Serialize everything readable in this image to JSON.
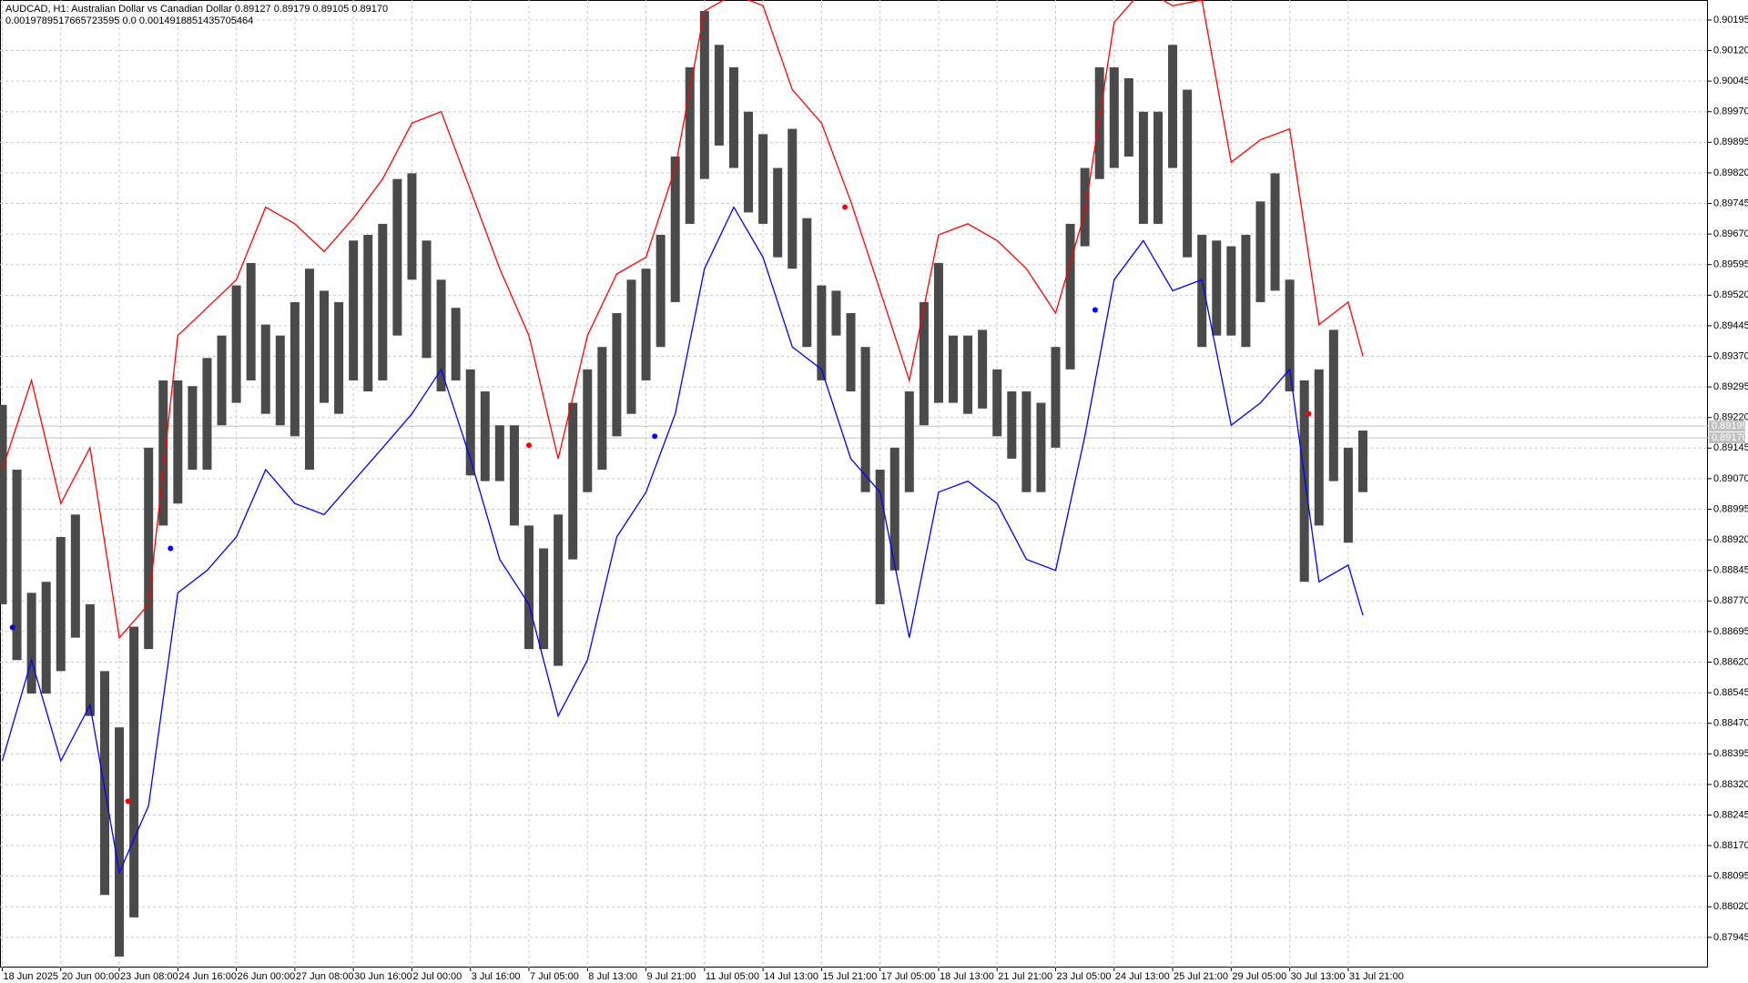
{
  "chart_data": {
    "type": "ohlc",
    "title": "AUDCAD, H1:  Australian Dollar vs Canadian Dollar  0.89127 0.89179 0.89105 0.89170",
    "subtitle": "0.0019789517665723595 0.0 0.0014918851435705464",
    "xlim": [
      0,
      116.5
    ],
    "xticks": [
      {
        "value": 0,
        "label": "18 Jun 2025"
      },
      {
        "value": 4,
        "label": "20 Jun 00:00"
      },
      {
        "value": 8,
        "label": "23 Jun 08:00"
      },
      {
        "value": 12,
        "label": "24 Jun 16:00"
      },
      {
        "value": 16,
        "label": "26 Jun 00:00"
      },
      {
        "value": 20,
        "label": "27 Jun 08:00"
      },
      {
        "value": 24,
        "label": "30 Jun 16:00"
      },
      {
        "value": 28,
        "label": "2 Jul 00:00"
      },
      {
        "value": 32,
        "label": "3 Jul 16:00"
      },
      {
        "value": 36,
        "label": "7 Jul 05:00"
      },
      {
        "value": 40,
        "label": "8 Jul 13:00"
      },
      {
        "value": 44,
        "label": "9 Jul 21:00"
      },
      {
        "value": 48,
        "label": "11 Jul 05:00"
      },
      {
        "value": 52,
        "label": "14 Jul 13:00"
      },
      {
        "value": 56,
        "label": "15 Jul 21:00"
      },
      {
        "value": 60,
        "label": "17 Jul 05:00"
      },
      {
        "value": 64,
        "label": "18 Jul 13:00"
      },
      {
        "value": 68,
        "label": "21 Jul 21:00"
      },
      {
        "value": 72,
        "label": "23 Jul 05:00"
      },
      {
        "value": 76,
        "label": "24 Jul 13:00"
      },
      {
        "value": 80,
        "label": "25 Jul 21:00"
      },
      {
        "value": 84,
        "label": "29 Jul 05:00"
      },
      {
        "value": 88,
        "label": "30 Jul 13:00"
      },
      {
        "value": 92,
        "label": "31 Jul 21:00"
      }
    ],
    "ylim": [
      0.87871,
      0.90244
    ],
    "yticks": [
      0.87945,
      {
        "value": 0.8802,
        "label": "0.88020"
      },
      0.88095,
      {
        "value": 0.8817,
        "label": "0.88170"
      },
      0.88245,
      {
        "value": 0.8832,
        "label": "0.88320"
      },
      0.88395,
      {
        "value": 0.8847,
        "label": "0.88470"
      },
      0.88545,
      {
        "value": 0.8862,
        "label": "0.88620"
      },
      0.88695,
      {
        "value": 0.8877,
        "label": "0.88770"
      },
      0.88845,
      {
        "value": 0.8892,
        "label": "0.88920"
      },
      0.88995,
      {
        "value": 0.8907,
        "label": "0.89070"
      },
      0.89145,
      {
        "value": 0.8922,
        "label": "0.89220"
      },
      0.89295,
      {
        "value": 0.8937,
        "label": "0.89370"
      },
      0.89445,
      {
        "value": 0.8952,
        "label": "0.89520"
      },
      0.89595,
      {
        "value": 0.8967,
        "label": "0.89670"
      },
      0.89745,
      {
        "value": 0.8982,
        "label": "0.89820"
      },
      0.89895,
      {
        "value": 0.8997,
        "label": "0.89970"
      },
      0.90045,
      {
        "value": 0.9012,
        "label": "0.90120"
      },
      0.90195
    ],
    "grid": true,
    "bars": {
      "color": "#4a4a4a",
      "high": [
        0.89251,
        0.89092,
        0.8879,
        0.88817,
        0.88927,
        0.88982,
        0.88762,
        0.88598,
        0.8846,
        0.88707,
        0.89146,
        0.89311,
        0.89311,
        0.89297,
        0.89366,
        0.89421,
        0.89544,
        0.89599,
        0.89448,
        0.89421,
        0.89503,
        0.89585,
        0.89531,
        0.89503,
        0.89654,
        0.89668,
        0.89695,
        0.89805,
        0.89819,
        0.89654,
        0.89558,
        0.89489,
        0.89338,
        0.89284,
        0.89201,
        0.89201,
        0.88955,
        0.88899,
        0.88982,
        0.89256,
        0.89338,
        0.89393,
        0.89476,
        0.89558,
        0.89585,
        0.89668,
        0.8986,
        0.90079,
        0.90217,
        0.90134,
        0.90079,
        0.8997,
        0.89915,
        0.89832,
        0.89928,
        0.89709,
        0.89544,
        0.89531,
        0.89476,
        0.89393,
        0.89092,
        0.89146,
        0.89284,
        0.89503,
        0.89599,
        0.89421,
        0.89421,
        0.89435,
        0.89338,
        0.89284,
        0.89284,
        0.89256,
        0.89393,
        0.89695,
        0.89832,
        0.90079,
        0.90079,
        0.90052,
        0.8997,
        0.8997,
        0.90134,
        0.90024,
        0.89668,
        0.89654,
        0.8964,
        0.89668,
        0.8975,
        0.89819,
        0.89558,
        0.89311,
        0.89338,
        0.89435,
        0.89146,
        0.89188
      ],
      "low": [
        0.88762,
        0.88625,
        0.88543,
        0.88543,
        0.88598,
        0.8868,
        0.88488,
        0.88049,
        0.87898,
        0.87994,
        0.88652,
        0.88955,
        0.89009,
        0.89092,
        0.89092,
        0.89201,
        0.89256,
        0.89311,
        0.89229,
        0.89201,
        0.89174,
        0.89092,
        0.89256,
        0.89229,
        0.89311,
        0.89284,
        0.89311,
        0.89421,
        0.89558,
        0.89366,
        0.89284,
        0.89311,
        0.89078,
        0.89064,
        0.89064,
        0.88955,
        0.88652,
        0.88652,
        0.88611,
        0.88872,
        0.89037,
        0.89092,
        0.89174,
        0.89229,
        0.89311,
        0.89393,
        0.89503,
        0.89695,
        0.89805,
        0.89887,
        0.89832,
        0.89723,
        0.89695,
        0.89613,
        0.89585,
        0.89393,
        0.89311,
        0.89421,
        0.89284,
        0.89037,
        0.88762,
        0.88845,
        0.89037,
        0.89201,
        0.89256,
        0.89256,
        0.89229,
        0.89242,
        0.89174,
        0.89119,
        0.89037,
        0.89037,
        0.89146,
        0.89338,
        0.8964,
        0.89805,
        0.89832,
        0.8986,
        0.89695,
        0.89695,
        0.89832,
        0.89613,
        0.89393,
        0.89421,
        0.89421,
        0.89393,
        0.89503,
        0.89531,
        0.89284,
        0.88817,
        0.88955,
        0.89064,
        0.88913,
        0.89037
      ]
    },
    "series": [
      {
        "color": "#ff0000",
        "x": [
          0,
          2,
          4,
          6,
          8,
          10,
          12,
          14,
          16,
          18,
          20,
          22,
          24,
          26,
          28,
          30,
          32,
          34,
          36,
          38,
          40,
          42,
          44,
          46,
          48,
          50,
          52,
          54,
          56,
          58,
          60,
          62,
          64,
          66,
          68,
          70,
          72,
          74,
          76,
          78,
          80,
          82,
          84,
          86,
          88,
          90,
          92,
          93
        ],
        "values": [
          0.89092,
          0.89311,
          0.89009,
          0.89146,
          0.8868,
          0.88762,
          0.89421,
          0.89489,
          0.89558,
          0.89736,
          0.89695,
          0.89627,
          0.89709,
          0.89805,
          0.89942,
          0.8997,
          0.89778,
          0.89585,
          0.89421,
          0.89119,
          0.89421,
          0.89572,
          0.89613,
          0.89832,
          0.90217,
          0.90258,
          0.9023,
          0.90024,
          0.89942,
          0.8975,
          0.89531,
          0.89311,
          0.89668,
          0.89695,
          0.89654,
          0.89585,
          0.89476,
          0.89723,
          0.90189,
          0.90271,
          0.9023,
          0.90244,
          0.89846,
          0.89901,
          0.89928,
          0.89448,
          0.89503,
          0.89371
        ]
      },
      {
        "color": "#0000ff",
        "x": [
          0,
          2,
          4,
          6,
          8,
          10,
          12,
          14,
          16,
          18,
          20,
          22,
          24,
          26,
          28,
          30,
          32,
          34,
          36,
          38,
          40,
          42,
          44,
          46,
          48,
          50,
          52,
          54,
          56,
          58,
          60,
          62,
          64,
          66,
          68,
          70,
          72,
          74,
          76,
          78,
          80,
          82,
          84,
          86,
          88,
          90,
          92,
          93
        ],
        "values": [
          0.88378,
          0.88625,
          0.88378,
          0.88515,
          0.88104,
          0.88268,
          0.8879,
          0.88845,
          0.88927,
          0.89092,
          0.89009,
          0.88982,
          0.89064,
          0.89146,
          0.89229,
          0.89338,
          0.89119,
          0.88872,
          0.88762,
          0.88488,
          0.88625,
          0.88927,
          0.89037,
          0.89229,
          0.89585,
          0.89736,
          0.89613,
          0.89393,
          0.89338,
          0.89119,
          0.89037,
          0.8868,
          0.89037,
          0.89064,
          0.89009,
          0.88872,
          0.88845,
          0.89174,
          0.89558,
          0.89654,
          0.89531,
          0.89558,
          0.89201,
          0.89256,
          0.89338,
          0.88817,
          0.88858,
          0.88735
        ]
      }
    ],
    "markers": [
      {
        "color": "#ff0000",
        "x": [
          8.6,
          36,
          57.6,
          89.3
        ],
        "values": [
          0.88279,
          0.89152,
          0.89736,
          0.89229
        ]
      },
      {
        "color": "#0000ff",
        "x": [
          0.7,
          11.5,
          44.6,
          74.7
        ],
        "values": [
          0.88705,
          0.88899,
          0.89174,
          0.89484
        ]
      }
    ],
    "levels": [
      0.89199,
      {
        "value": 0.8917,
        "label": "0.89170"
      }
    ]
  }
}
